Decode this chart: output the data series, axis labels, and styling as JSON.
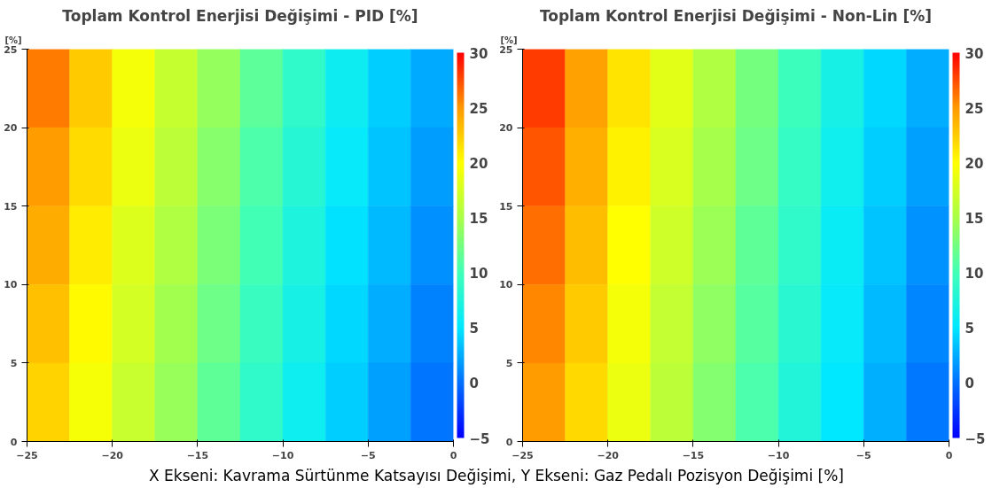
{
  "chart_data": [
    {
      "type": "heatmap",
      "title": "Toplam Kontrol Enerjisi Değişimi - PID [%]",
      "ylabel": "[%]",
      "x": [
        -23.75,
        -21.25,
        -18.75,
        -16.25,
        -13.75,
        -11.25,
        -8.75,
        -6.25,
        -3.75,
        -1.25
      ],
      "y": [
        22.5,
        17.5,
        12.5,
        7.5,
        2.5
      ],
      "cells": [
        [
          25.9,
          22.6,
          19.4,
          16.7,
          14.1,
          11.4,
          8.7,
          6.0,
          4.0,
          2.5
        ],
        [
          24.9,
          21.7,
          18.8,
          16.1,
          13.4,
          10.7,
          8.1,
          5.4,
          3.6,
          1.9
        ],
        [
          24.0,
          20.9,
          18.1,
          15.4,
          12.8,
          10.1,
          7.4,
          4.8,
          3.1,
          1.4
        ],
        [
          23.1,
          20.2,
          17.5,
          14.8,
          12.1,
          9.4,
          6.8,
          4.4,
          2.6,
          0.8
        ],
        [
          22.2,
          19.5,
          16.8,
          14.2,
          11.5,
          8.8,
          6.1,
          3.9,
          2.1,
          0.2
        ]
      ],
      "xlim": [
        -25,
        0
      ],
      "ylim": [
        0,
        25
      ],
      "xticks": [
        -25,
        -20,
        -15,
        -10,
        -5,
        0
      ],
      "yticks": [
        0,
        5,
        10,
        15,
        20,
        25
      ],
      "clim": [
        -5,
        30
      ],
      "cticks": [
        -5,
        0,
        5,
        10,
        15,
        20,
        25,
        30
      ],
      "colors": [
        "#0000ff",
        "#0070ff",
        "#00e8ff",
        "#40ffb8",
        "#a8ff48",
        "#ffff00",
        "#ff9a00",
        "#ff0000"
      ],
      "annotations": [
        "X Ekseni: Kavrama Sürtünme Katsayısı Değişimi, Y Ekseni: Gaz Pedalı Pozisyon Değişimi [%]"
      ]
    },
    {
      "type": "heatmap",
      "title": "Toplam Kontrol Enerjisi Değişimi - Non-Lin [%]",
      "ylabel": "[%]",
      "x": [
        -23.75,
        -21.25,
        -18.75,
        -16.25,
        -13.75,
        -11.25,
        -8.75,
        -6.25,
        -3.75,
        -1.25
      ],
      "y": [
        22.5,
        17.5,
        12.5,
        7.5,
        2.5
      ],
      "cells": [
        [
          28.0,
          24.6,
          21.3,
          18.3,
          15.4,
          12.5,
          9.7,
          6.8,
          4.3,
          2.6
        ],
        [
          27.2,
          23.9,
          20.6,
          17.7,
          14.9,
          12.1,
          9.2,
          6.3,
          4.0,
          2.1
        ],
        [
          26.4,
          23.2,
          20.0,
          17.2,
          14.3,
          11.5,
          8.7,
          5.8,
          3.6,
          1.5
        ],
        [
          25.6,
          22.5,
          19.4,
          16.6,
          13.8,
          11.0,
          8.2,
          5.4,
          3.1,
          1.0
        ],
        [
          24.9,
          21.8,
          18.9,
          16.1,
          13.3,
          10.5,
          7.7,
          5.0,
          2.7,
          0.4
        ]
      ],
      "xlim": [
        -25,
        0
      ],
      "ylim": [
        0,
        25
      ],
      "xticks": [
        -25,
        -20,
        -15,
        -10,
        -5,
        0
      ],
      "yticks": [
        0,
        5,
        10,
        15,
        20,
        25
      ],
      "clim": [
        -5,
        30
      ],
      "cticks": [
        -5,
        0,
        5,
        10,
        15,
        20,
        25,
        30
      ],
      "colors": [
        "#0000ff",
        "#0070ff",
        "#00e8ff",
        "#40ffb8",
        "#a8ff48",
        "#ffff00",
        "#ff9a00",
        "#ff0000"
      ]
    }
  ]
}
